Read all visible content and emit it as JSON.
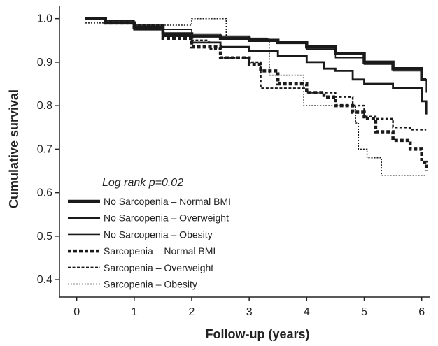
{
  "chart_data": {
    "type": "line",
    "xlabel": "Follow-up (years)",
    "ylabel": "Cumulative survival",
    "annotation": "Log rank p=0.02",
    "xlim": [
      -0.3,
      6.15
    ],
    "ylim": [
      0.36,
      1.03
    ],
    "xticks": [
      0,
      1,
      2,
      3,
      4,
      5,
      6
    ],
    "yticks": [
      0.4,
      0.5,
      0.6,
      0.7,
      0.8,
      0.9,
      1.0
    ],
    "ytick_labels": [
      "0.4",
      "0.5",
      "0.6",
      "0.7",
      "0.8",
      "0.9",
      "1.0"
    ],
    "grid": false,
    "legend_position": "bottom-left",
    "series": [
      {
        "name": "No Sarcopenia – Normal BMI",
        "style": "solid-thick",
        "x": [
          0.15,
          0.5,
          1.0,
          1.5,
          2.0,
          2.5,
          3.0,
          3.5,
          4.0,
          4.5,
          5.0,
          5.5,
          6.0,
          6.08
        ],
        "y": [
          1.0,
          0.99,
          0.98,
          0.965,
          0.96,
          0.955,
          0.95,
          0.945,
          0.935,
          0.92,
          0.9,
          0.885,
          0.86,
          0.86
        ]
      },
      {
        "name": "No Sarcopenia – Overweight",
        "style": "solid-medium",
        "x": [
          0.15,
          0.5,
          1.0,
          1.5,
          2.0,
          2.5,
          3.0,
          3.5,
          4.0,
          4.3,
          4.5,
          4.8,
          5.0,
          5.5,
          6.0,
          6.08
        ],
        "y": [
          1.0,
          0.99,
          0.975,
          0.96,
          0.945,
          0.935,
          0.925,
          0.915,
          0.9,
          0.885,
          0.88,
          0.86,
          0.85,
          0.84,
          0.81,
          0.78
        ]
      },
      {
        "name": "No Sarcopenia – Obesity",
        "style": "solid-thin",
        "x": [
          0.15,
          0.5,
          1.0,
          1.5,
          2.0,
          2.5,
          3.0,
          3.3,
          3.5,
          4.0,
          4.5,
          5.0,
          5.5,
          6.0,
          6.08
        ],
        "y": [
          1.0,
          0.995,
          0.985,
          0.975,
          0.965,
          0.96,
          0.955,
          0.95,
          0.945,
          0.93,
          0.91,
          0.895,
          0.88,
          0.86,
          0.83
        ]
      },
      {
        "name": "Sarcopenia – Normal BMI",
        "style": "dash-thick",
        "x": [
          0.15,
          0.5,
          1.0,
          1.5,
          2.0,
          2.5,
          3.0,
          3.2,
          3.5,
          4.0,
          4.3,
          4.5,
          4.8,
          5.0,
          5.2,
          5.5,
          5.8,
          6.0,
          6.08
        ],
        "y": [
          1.0,
          0.99,
          0.98,
          0.955,
          0.935,
          0.91,
          0.895,
          0.88,
          0.85,
          0.83,
          0.82,
          0.8,
          0.785,
          0.77,
          0.74,
          0.72,
          0.7,
          0.67,
          0.65
        ]
      },
      {
        "name": "Sarcopenia – Overweight",
        "style": "dash-medium",
        "x": [
          0.15,
          0.5,
          1.0,
          1.5,
          2.0,
          2.3,
          2.5,
          3.0,
          3.2,
          3.5,
          4.0,
          4.5,
          4.8,
          5.0,
          5.2,
          5.5,
          5.8,
          6.08
        ],
        "y": [
          1.0,
          0.99,
          0.985,
          0.96,
          0.95,
          0.93,
          0.91,
          0.9,
          0.84,
          0.84,
          0.83,
          0.82,
          0.8,
          0.775,
          0.77,
          0.75,
          0.745,
          0.745
        ]
      },
      {
        "name": "Sarcopenia – Obesity",
        "style": "dot-thin",
        "x": [
          0.15,
          0.5,
          1.0,
          2.0,
          2.45,
          2.6,
          3.0,
          3.3,
          3.35,
          3.9,
          3.95,
          4.6,
          4.85,
          4.9,
          5.0,
          5.05,
          5.2,
          5.3,
          6.0,
          6.08
        ],
        "y": [
          0.99,
          0.99,
          0.985,
          1.0,
          1.0,
          0.955,
          0.955,
          0.955,
          0.87,
          0.87,
          0.8,
          0.8,
          0.76,
          0.7,
          0.7,
          0.68,
          0.68,
          0.64,
          0.64,
          0.64
        ]
      }
    ]
  }
}
